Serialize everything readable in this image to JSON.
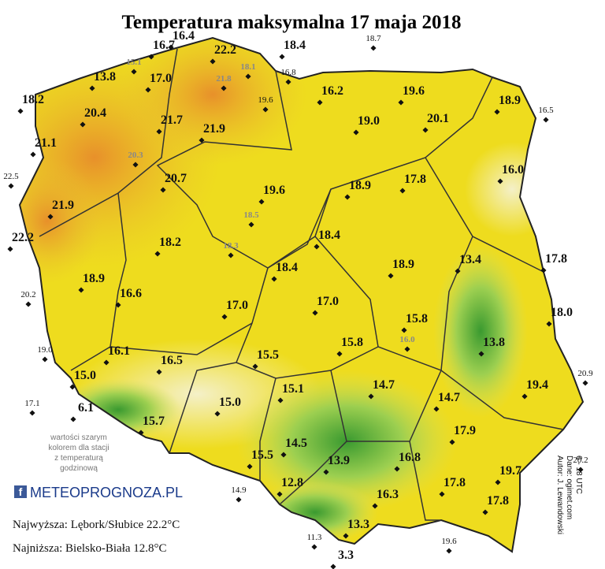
{
  "title": "Temperatura maksymalna 17 maja 2018",
  "main_stations": [
    "16.7",
    "16.4",
    "22.2",
    "18.4",
    "17.0",
    "13.8",
    "18.2",
    "16.2",
    "19.6",
    "18.9",
    "20.4",
    "21.7",
    "21.9",
    "19.0",
    "20.1",
    "21.1",
    "16.0",
    "20.7",
    "19.6",
    "18.9",
    "17.8",
    "21.9",
    "22.2",
    "18.2",
    "18.4",
    "13.4",
    "17.8",
    "18.4",
    "18.9",
    "18.9",
    "16.6",
    "17.0",
    "17.0",
    "18.0",
    "15.8",
    "13.8",
    "15.8",
    "16.1",
    "15.5",
    "16.5",
    "15.0",
    "14.7",
    "19.4",
    "15.1",
    "15.0",
    "14.7",
    "6.1",
    "15.7",
    "14.5",
    "15.5",
    "17.9",
    "13.9",
    "16.8",
    "19.7",
    "12.8",
    "17.8",
    "16.3",
    "17.8",
    "13.3",
    "3.3"
  ],
  "small_stations": [
    "18.7",
    "16.8",
    "19.6",
    "16.5",
    "22.5",
    "20.2",
    "19.0",
    "20.9",
    "17.1",
    "20.2",
    "14.9",
    "11.3",
    "19.6"
  ],
  "gray_stations": [
    "15.1",
    "18.1",
    "21.8",
    "20.3",
    "18.5",
    "18.3",
    "16.0"
  ],
  "note": [
    "wartości szarym",
    "kolorem dla stacji",
    "z temperaturą",
    "godzinową"
  ],
  "logo": "METEOPROGNOZA.PL",
  "highest": "Najwyższa: Lębork/Słubice 22.2°C",
  "lowest": "Najniższa: Bielsko-Biała 12.8°C",
  "credits": [
    "Autor: J. Lewandowski",
    "Dane: ogimet.com",
    "6 - 18 UTC"
  ]
}
